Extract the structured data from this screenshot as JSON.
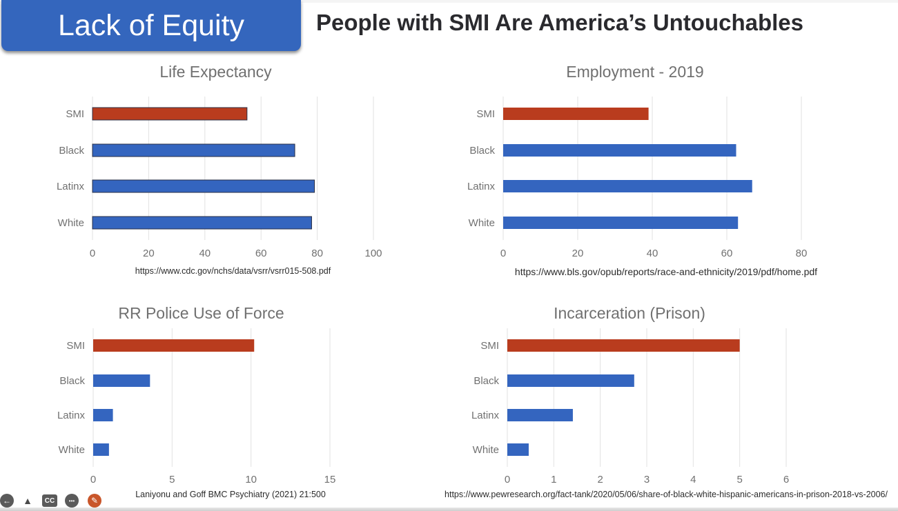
{
  "slide": {
    "badge_label": "Lack of Equity",
    "title": "People with SMI Are America’s Untouchables"
  },
  "colors": {
    "badge": "#3466bd",
    "smi_bar": "#b93c1e",
    "group_bar": "#3465bf",
    "grid": "#e2e2e2",
    "tick_text": "#707070",
    "chart_title": "#707070"
  },
  "chart_data": [
    {
      "type": "bar",
      "orientation": "horizontal",
      "title": "Life Expectancy",
      "categories": [
        "SMI",
        "Black",
        "Latinx",
        "White"
      ],
      "values": [
        55,
        72,
        79,
        78
      ],
      "xlim": [
        0,
        100
      ],
      "xticks": [
        0,
        20,
        40,
        60,
        80,
        100
      ],
      "grid": true,
      "source": "https://www.cdc.gov/nchs/data/vsrr/vsrr015-508.pdf"
    },
    {
      "type": "bar",
      "orientation": "horizontal",
      "title": "Employment - 2019",
      "categories": [
        "SMI",
        "Black",
        "Latinx",
        "White"
      ],
      "values": [
        39,
        62.5,
        66.8,
        63
      ],
      "xlim": [
        0,
        80
      ],
      "xticks": [
        0,
        20,
        40,
        60,
        80
      ],
      "grid": true,
      "source": "https://www.bls.gov/opub/reports/race-and-ethnicity/2019/pdf/home.pdf"
    },
    {
      "type": "bar",
      "orientation": "horizontal",
      "title": "RR Police Use of Force",
      "categories": [
        "SMI",
        "Black",
        "Latinx",
        "White"
      ],
      "values": [
        10.2,
        3.6,
        1.25,
        1.0
      ],
      "xlim": [
        0,
        15
      ],
      "xticks": [
        0,
        5,
        10,
        15
      ],
      "grid": true,
      "source": "Laniyonu and Goff BMC Psychiatry (2021) 21:500"
    },
    {
      "type": "bar",
      "orientation": "horizontal",
      "title": "Incarceration (Prison)",
      "categories": [
        "SMI",
        "Black",
        "Latinx",
        "White"
      ],
      "values": [
        5.0,
        2.73,
        1.41,
        0.46
      ],
      "xlim": [
        0,
        6
      ],
      "xticks": [
        0,
        1,
        2,
        3,
        4,
        5,
        6
      ],
      "grid": true,
      "source": "https://www.pewresearch.org/fact-tank/2020/05/06/share-of-black-white-hispanic-americans-in-prison-2018-vs-2006/"
    }
  ],
  "player_controls": [
    {
      "name": "back-icon",
      "glyph": "←"
    },
    {
      "name": "pointer-icon",
      "glyph": "▲"
    },
    {
      "name": "cc-icon",
      "glyph": "CC"
    },
    {
      "name": "more-icon",
      "glyph": "•••"
    },
    {
      "name": "pen-icon",
      "glyph": "✎"
    }
  ]
}
